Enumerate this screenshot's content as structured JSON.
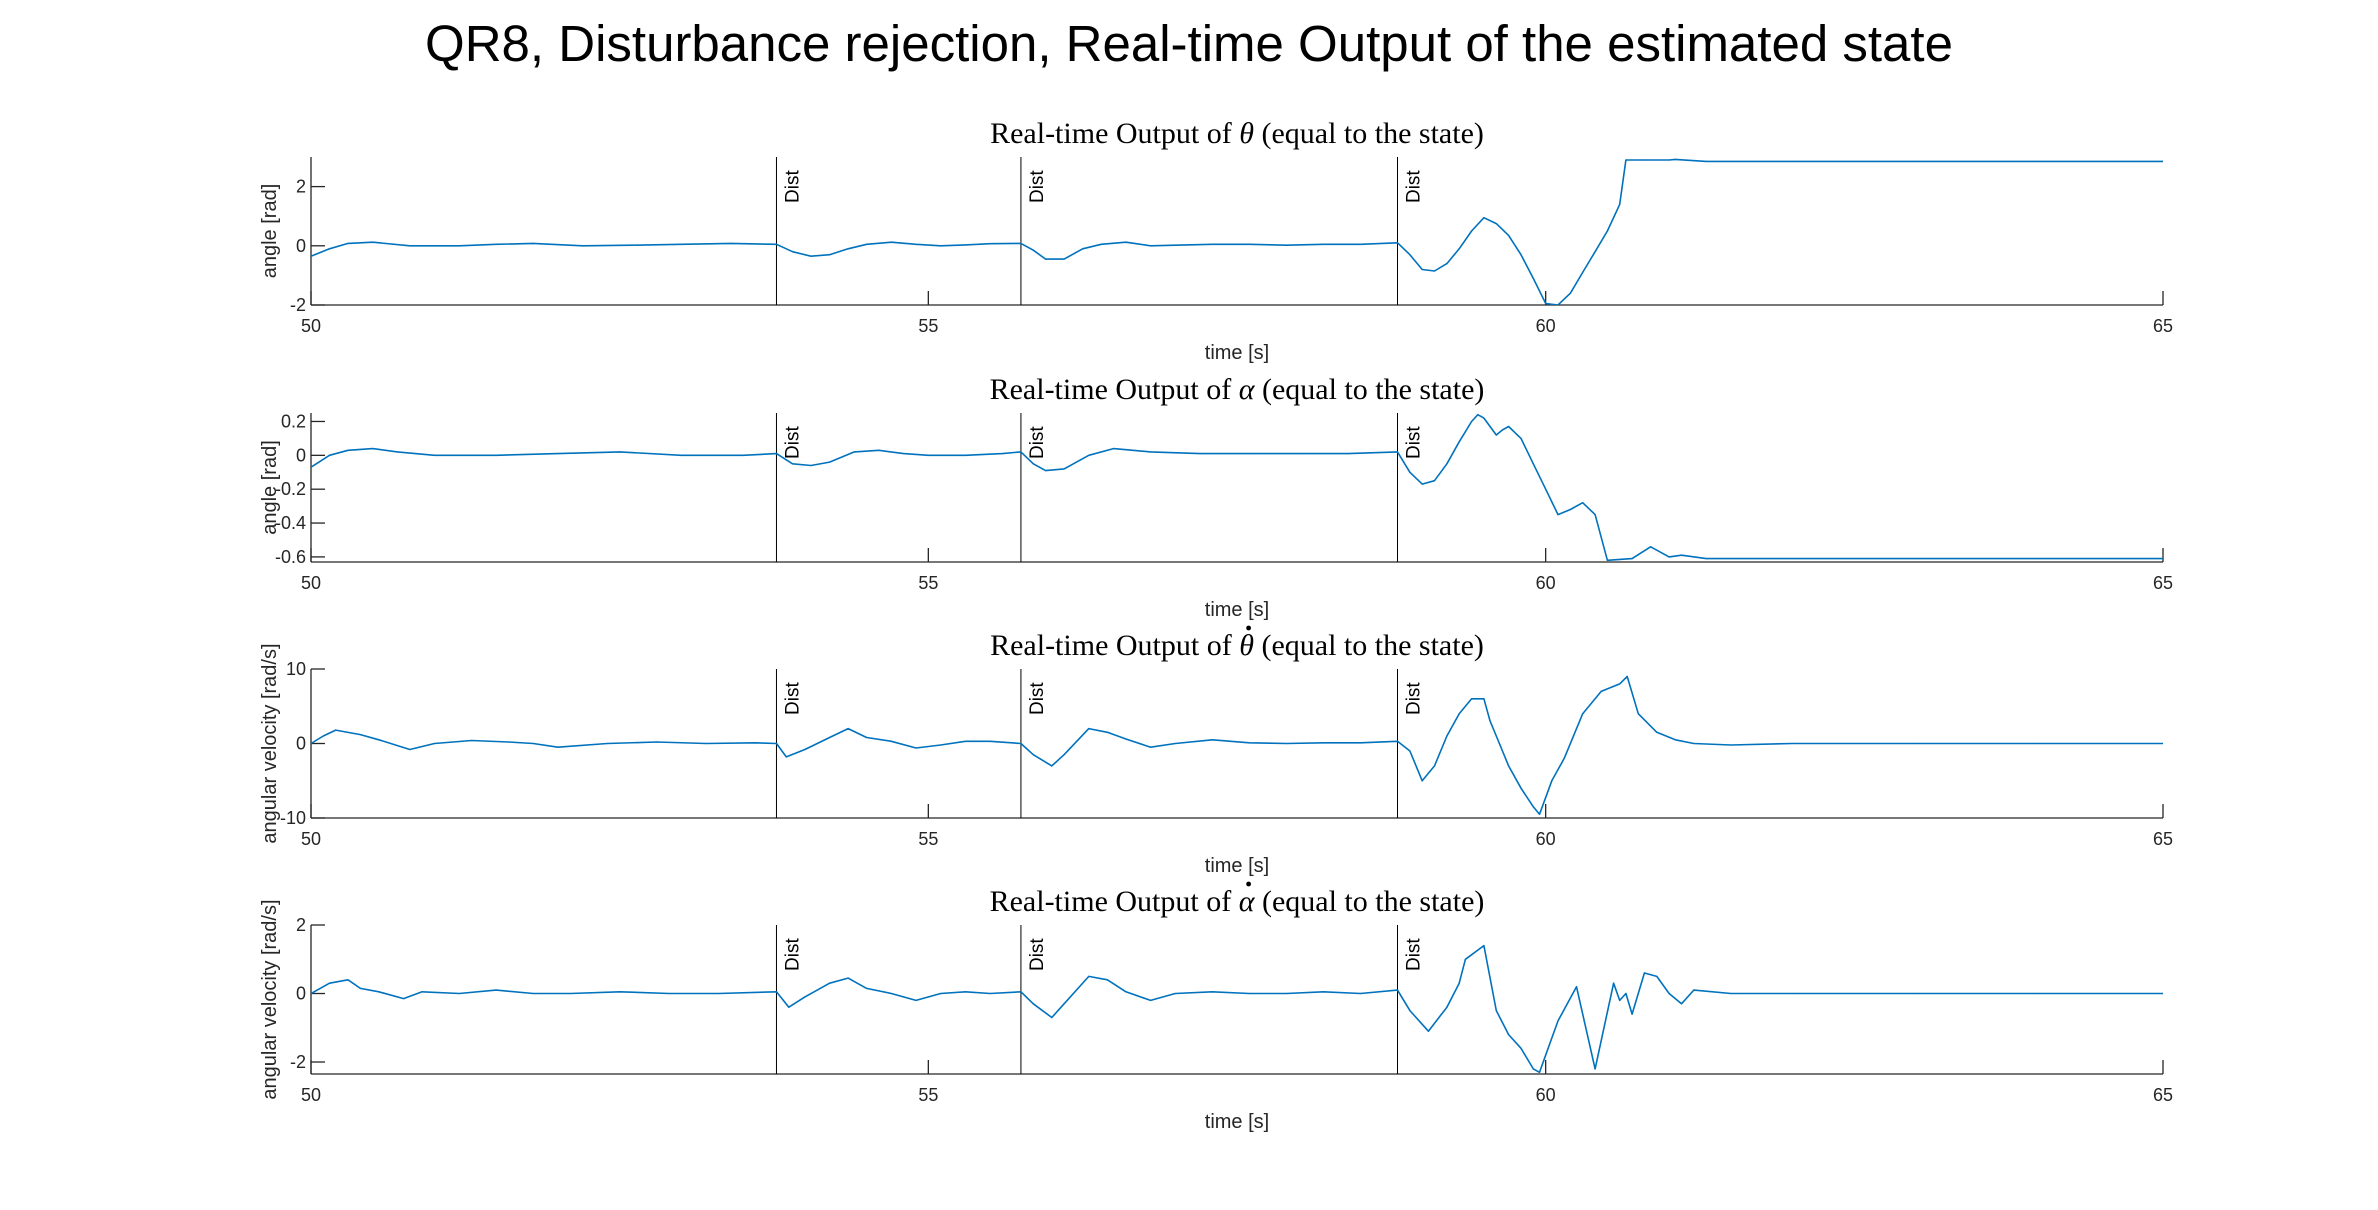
{
  "figure": {
    "title": "QR8, Disturbance rejection, Real-time Output of the estimated state",
    "line_color": "#0072BD",
    "marker_color": "#000000"
  },
  "chart_data": [
    {
      "type": "line",
      "title": "Real-time Output of θ (equal to the state)",
      "title_parts": [
        "Real-time Output of ",
        "θ",
        " (equal to the state)"
      ],
      "title_accent": "",
      "xlabel": "time [s]",
      "ylabel": "angle [rad]",
      "xlim": [
        50,
        65
      ],
      "ylim": [
        -2,
        3
      ],
      "xticks": [
        50,
        55,
        60,
        65
      ],
      "yticks": [
        -2,
        0,
        2
      ],
      "ytick_labels": [
        "-2",
        "0",
        "2"
      ],
      "disturbances": [
        {
          "x": 53.77,
          "label": "Dist"
        },
        {
          "x": 55.75,
          "label": "Dist"
        },
        {
          "x": 58.8,
          "label": "Dist"
        }
      ],
      "series": [
        {
          "x": [
            50.0,
            50.15,
            50.3,
            50.5,
            50.8,
            51.2,
            51.5,
            51.8,
            52.2,
            52.6,
            53.0,
            53.4,
            53.77,
            53.9,
            54.05,
            54.2,
            54.35,
            54.5,
            54.7,
            54.9,
            55.1,
            55.3,
            55.5,
            55.75,
            55.85,
            55.95,
            56.1,
            56.25,
            56.4,
            56.6,
            56.8,
            57.0,
            57.3,
            57.6,
            57.9,
            58.2,
            58.5,
            58.8,
            58.9,
            59.0,
            59.1,
            59.2,
            59.3,
            59.4,
            59.5,
            59.6,
            59.7,
            59.8,
            59.9,
            60.0,
            60.1,
            60.2,
            60.3,
            60.4,
            60.5,
            60.6,
            60.65,
            60.8,
            61.0,
            61.05,
            61.3,
            62.0,
            63.0,
            64.0,
            65.0
          ],
          "y": [
            -0.35,
            -0.1,
            0.08,
            0.12,
            0.0,
            0.0,
            0.05,
            0.08,
            0.0,
            0.02,
            0.05,
            0.08,
            0.05,
            -0.2,
            -0.35,
            -0.3,
            -0.1,
            0.05,
            0.12,
            0.05,
            0.0,
            0.03,
            0.07,
            0.08,
            -0.15,
            -0.45,
            -0.45,
            -0.1,
            0.05,
            0.12,
            0.0,
            0.02,
            0.05,
            0.05,
            0.02,
            0.05,
            0.05,
            0.1,
            -0.3,
            -0.8,
            -0.85,
            -0.6,
            -0.1,
            0.5,
            0.95,
            0.75,
            0.35,
            -0.3,
            -1.1,
            -1.95,
            -2.0,
            -1.6,
            -0.9,
            -0.2,
            0.5,
            1.4,
            2.9,
            2.9,
            2.9,
            2.92,
            2.85,
            2.85,
            2.85,
            2.85,
            2.85
          ]
        }
      ]
    },
    {
      "type": "line",
      "title": "Real-time Output of α (equal to the state)",
      "title_parts": [
        "Real-time Output of ",
        "α",
        " (equal to the state)"
      ],
      "title_accent": "",
      "xlabel": "time [s]",
      "ylabel": "angle [rad]",
      "xlim": [
        50,
        65
      ],
      "ylim": [
        -0.63,
        0.25
      ],
      "xticks": [
        50,
        55,
        60,
        65
      ],
      "yticks": [
        -0.6,
        -0.4,
        -0.2,
        0,
        0.2
      ],
      "ytick_labels": [
        "-0.6",
        "-0.4",
        "-0.2",
        "0",
        "0.2"
      ],
      "disturbances": [
        {
          "x": 53.77,
          "label": "Dist"
        },
        {
          "x": 55.75,
          "label": "Dist"
        },
        {
          "x": 58.8,
          "label": "Dist"
        }
      ],
      "series": [
        {
          "x": [
            50.0,
            50.15,
            50.3,
            50.5,
            50.7,
            51.0,
            51.5,
            52.0,
            52.5,
            53.0,
            53.5,
            53.77,
            53.9,
            54.05,
            54.2,
            54.4,
            54.6,
            54.8,
            55.0,
            55.3,
            55.6,
            55.75,
            55.85,
            55.95,
            56.1,
            56.3,
            56.5,
            56.8,
            57.2,
            57.6,
            58.0,
            58.4,
            58.8,
            58.9,
            59.0,
            59.1,
            59.2,
            59.3,
            59.4,
            59.45,
            59.5,
            59.6,
            59.65,
            59.7,
            59.8,
            59.9,
            60.0,
            60.1,
            60.2,
            60.3,
            60.4,
            60.5,
            60.7,
            60.85,
            61.0,
            61.1,
            61.3,
            62.0,
            63.0,
            64.0,
            65.0
          ],
          "y": [
            -0.07,
            0.0,
            0.03,
            0.04,
            0.02,
            0.0,
            0.0,
            0.01,
            0.02,
            0.0,
            0.0,
            0.01,
            -0.05,
            -0.06,
            -0.04,
            0.02,
            0.03,
            0.01,
            0.0,
            0.0,
            0.01,
            0.02,
            -0.05,
            -0.09,
            -0.08,
            0.0,
            0.04,
            0.02,
            0.01,
            0.01,
            0.01,
            0.01,
            0.02,
            -0.1,
            -0.17,
            -0.15,
            -0.05,
            0.08,
            0.2,
            0.24,
            0.22,
            0.12,
            0.15,
            0.17,
            0.1,
            -0.05,
            -0.2,
            -0.35,
            -0.32,
            -0.28,
            -0.35,
            -0.62,
            -0.61,
            -0.54,
            -0.6,
            -0.59,
            -0.61,
            -0.61,
            -0.61,
            -0.61,
            -0.61
          ]
        }
      ]
    },
    {
      "type": "line",
      "title": "Real-time Output of θ̇ (equal to the state)",
      "title_parts": [
        "Real-time Output of ",
        "θ",
        " (equal to the state)"
      ],
      "title_accent": "˙",
      "xlabel": "time [s]",
      "ylabel": "angular velocity [rad/s]",
      "xlim": [
        50,
        65
      ],
      "ylim": [
        -10,
        10
      ],
      "xticks": [
        50,
        55,
        60,
        65
      ],
      "yticks": [
        -10,
        0,
        10
      ],
      "ytick_labels": [
        "-10",
        "0",
        "10"
      ],
      "disturbances": [
        {
          "x": 53.77,
          "label": "Dist"
        },
        {
          "x": 55.75,
          "label": "Dist"
        },
        {
          "x": 58.8,
          "label": "Dist"
        }
      ],
      "series": [
        {
          "x": [
            50.0,
            50.1,
            50.2,
            50.4,
            50.55,
            50.8,
            51.0,
            51.3,
            51.6,
            51.8,
            52.0,
            52.4,
            52.8,
            53.2,
            53.6,
            53.77,
            53.85,
            54.0,
            54.2,
            54.35,
            54.5,
            54.7,
            54.9,
            55.1,
            55.3,
            55.5,
            55.75,
            55.85,
            56.0,
            56.1,
            56.3,
            56.45,
            56.6,
            56.8,
            57.0,
            57.3,
            57.6,
            57.9,
            58.2,
            58.5,
            58.8,
            58.9,
            59.0,
            59.1,
            59.2,
            59.3,
            59.4,
            59.5,
            59.55,
            59.6,
            59.7,
            59.8,
            59.9,
            59.95,
            60.05,
            60.15,
            60.3,
            60.45,
            60.6,
            60.66,
            60.75,
            60.9,
            61.05,
            61.2,
            61.5,
            62.0,
            63.0,
            64.0,
            65.0
          ],
          "y": [
            0.0,
            1.0,
            1.8,
            1.2,
            0.5,
            -0.8,
            0.0,
            0.4,
            0.2,
            0.0,
            -0.5,
            0.0,
            0.2,
            0.0,
            0.1,
            0.0,
            -1.8,
            -0.8,
            0.8,
            2.0,
            0.8,
            0.3,
            -0.6,
            -0.2,
            0.3,
            0.3,
            0.0,
            -1.5,
            -3.0,
            -1.5,
            2.0,
            1.5,
            0.6,
            -0.5,
            0.0,
            0.5,
            0.1,
            0.0,
            0.1,
            0.1,
            0.3,
            -1.0,
            -5.0,
            -3.0,
            1.0,
            4.0,
            6.0,
            6.0,
            3.0,
            1.0,
            -3.0,
            -6.0,
            -8.5,
            -9.5,
            -5.0,
            -2.0,
            4.0,
            7.0,
            8.0,
            9.0,
            4.0,
            1.5,
            0.5,
            0.0,
            -0.2,
            0.0,
            0.0,
            0.0,
            0.0
          ]
        }
      ]
    },
    {
      "type": "line",
      "title": "Real-time Output of α̇ (equal to the state)",
      "title_parts": [
        "Real-time Output of ",
        "α",
        " (equal to the state)"
      ],
      "title_accent": "˙",
      "xlabel": "time [s]",
      "ylabel": "angular velocity [rad/s]",
      "xlim": [
        50,
        65
      ],
      "ylim": [
        -2.35,
        2
      ],
      "xticks": [
        50,
        55,
        60,
        65
      ],
      "yticks": [
        -2,
        0,
        2
      ],
      "ytick_labels": [
        "-2",
        "0",
        "2"
      ],
      "disturbances": [
        {
          "x": 53.77,
          "label": "Dist"
        },
        {
          "x": 55.75,
          "label": "Dist"
        },
        {
          "x": 58.8,
          "label": "Dist"
        }
      ],
      "series": [
        {
          "x": [
            50.0,
            50.15,
            50.3,
            50.4,
            50.55,
            50.75,
            50.9,
            51.2,
            51.5,
            51.8,
            52.1,
            52.5,
            52.9,
            53.3,
            53.77,
            53.87,
            54.0,
            54.2,
            54.35,
            54.5,
            54.7,
            54.9,
            55.1,
            55.3,
            55.5,
            55.75,
            55.85,
            56.0,
            56.1,
            56.3,
            56.45,
            56.6,
            56.8,
            57.0,
            57.3,
            57.6,
            57.9,
            58.2,
            58.5,
            58.8,
            58.9,
            59.05,
            59.2,
            59.3,
            59.35,
            59.5,
            59.6,
            59.7,
            59.8,
            59.9,
            59.95,
            60.1,
            60.25,
            60.4,
            60.55,
            60.6,
            60.65,
            60.7,
            60.8,
            60.9,
            61.0,
            61.1,
            61.2,
            61.5,
            62.0,
            63.0,
            64.0,
            65.0
          ],
          "y": [
            0.0,
            0.3,
            0.4,
            0.15,
            0.05,
            -0.15,
            0.05,
            0.0,
            0.1,
            0.0,
            0.0,
            0.05,
            0.0,
            0.0,
            0.05,
            -0.4,
            -0.1,
            0.3,
            0.45,
            0.15,
            0.0,
            -0.2,
            0.0,
            0.05,
            0.0,
            0.05,
            -0.3,
            -0.7,
            -0.3,
            0.5,
            0.4,
            0.05,
            -0.2,
            0.0,
            0.05,
            0.0,
            0.0,
            0.05,
            0.0,
            0.1,
            -0.5,
            -1.1,
            -0.4,
            0.3,
            1.0,
            1.4,
            -0.5,
            -1.2,
            -1.6,
            -2.2,
            -2.3,
            -0.8,
            0.2,
            -2.2,
            0.3,
            -0.2,
            0.0,
            -0.6,
            0.6,
            0.5,
            0.0,
            -0.3,
            0.1,
            0.0,
            0.0,
            0.0,
            0.0,
            0.0
          ]
        }
      ]
    }
  ]
}
